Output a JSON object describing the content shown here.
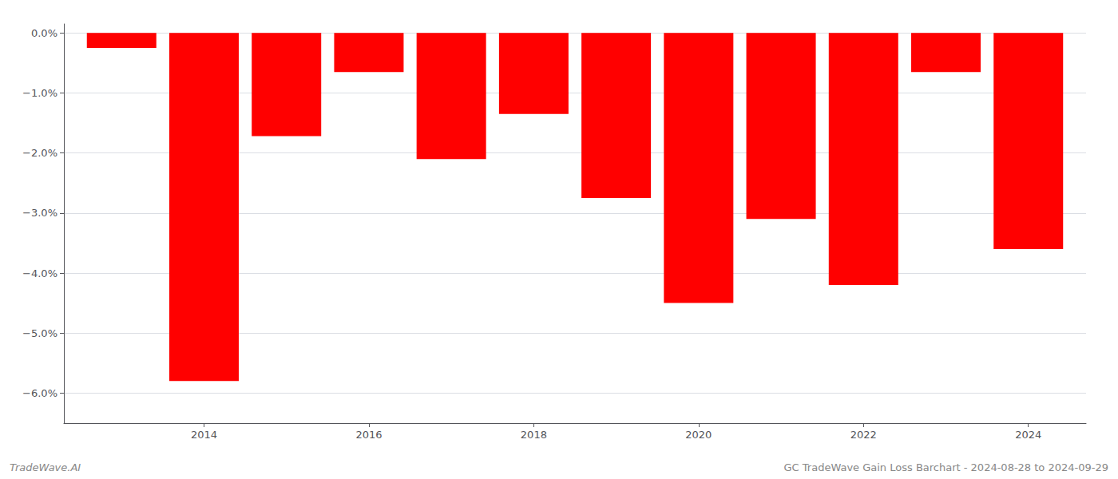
{
  "chart_data": {
    "type": "bar",
    "x": [
      2013,
      2014,
      2015,
      2016,
      2017,
      2018,
      2019,
      2020,
      2021,
      2022,
      2023,
      2024
    ],
    "values": [
      -0.25,
      -5.8,
      -1.72,
      -0.65,
      -2.1,
      -1.35,
      -2.75,
      -4.5,
      -3.1,
      -4.2,
      -0.65,
      -3.6
    ],
    "color": "#ff0000",
    "xlim": [
      2012.3,
      2024.7
    ],
    "xticks": [
      2014,
      2016,
      2018,
      2020,
      2022,
      2024
    ],
    "ylim": [
      -6.5,
      0.15
    ],
    "yticks": [
      {
        "value": 0.0,
        "label": "0.0%"
      },
      {
        "value": -1.0,
        "label": "−1.0%"
      },
      {
        "value": -2.0,
        "label": "−2.0%"
      },
      {
        "value": -3.0,
        "label": "−3.0%"
      },
      {
        "value": -4.0,
        "label": "−4.0%"
      },
      {
        "value": -5.0,
        "label": "−5.0%"
      },
      {
        "value": -6.0,
        "label": "−6.0%"
      }
    ],
    "grid": true,
    "annotations": [
      "TradeWave.AI",
      "GC TradeWave Gain Loss Barchart - 2024-08-28 to 2024-09-29"
    ]
  }
}
